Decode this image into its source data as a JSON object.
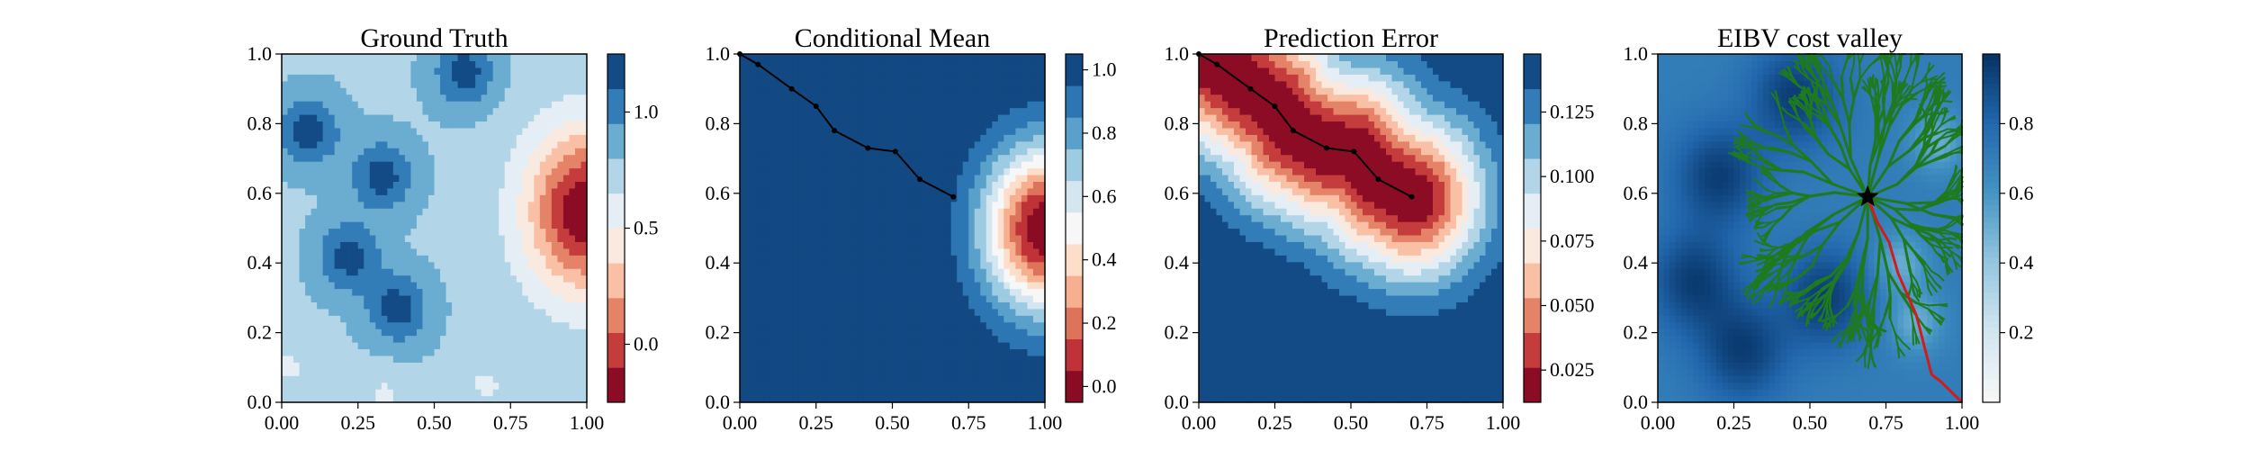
{
  "chart_data": [
    {
      "type": "heatmap",
      "title": "Ground Truth",
      "xlabel": "",
      "ylabel": "",
      "xlim": [
        0,
        1
      ],
      "ylim": [
        0,
        1
      ],
      "x_ticks": [
        "0.00",
        "0.25",
        "0.50",
        "0.75",
        "1.00"
      ],
      "y_ticks": [
        "0.0",
        "0.2",
        "0.4",
        "0.6",
        "0.8",
        "1.0"
      ],
      "colormap": "RdBu",
      "colorbar": {
        "range": [
          -0.25,
          1.25
        ],
        "levels": 10,
        "ticks": [
          0.0,
          0.5,
          1.0
        ],
        "tick_labels": [
          "0.0",
          "0.5",
          "1.0"
        ]
      },
      "field": {
        "hotspot": {
          "x": 1.0,
          "y": 0.55,
          "min_value": -0.25
        },
        "background_value": 1.0,
        "deep_blue_regions": [
          {
            "x": 0.22,
            "y": 0.42
          },
          {
            "x": 0.38,
            "y": 0.27
          },
          {
            "x": 0.09,
            "y": 0.78
          },
          {
            "x": 0.33,
            "y": 0.65
          },
          {
            "x": 0.6,
            "y": 0.95
          }
        ],
        "light_regions": [
          {
            "x": 0.02,
            "y": 0.1
          },
          {
            "x": 0.33,
            "y": 0.02
          },
          {
            "x": 0.67,
            "y": 0.05
          }
        ]
      }
    },
    {
      "type": "heatmap",
      "title": "Conditional Mean",
      "xlabel": "",
      "ylabel": "",
      "xlim": [
        0,
        1
      ],
      "ylim": [
        0,
        1
      ],
      "x_ticks": [
        "0.00",
        "0.25",
        "0.50",
        "0.75",
        "1.00"
      ],
      "y_ticks": [
        "0.0",
        "0.2",
        "0.4",
        "0.6",
        "0.8",
        "1.0"
      ],
      "colormap": "RdBu",
      "colorbar": {
        "range": [
          -0.05,
          1.05
        ],
        "levels": 11,
        "ticks": [
          0.0,
          0.2,
          0.4,
          0.6,
          0.8,
          1.0
        ],
        "tick_labels": [
          "0.0",
          "0.2",
          "0.4",
          "0.6",
          "0.8",
          "1.0"
        ]
      },
      "field": {
        "hotspot": {
          "x": 1.0,
          "y": 0.5,
          "min_value": -0.05
        },
        "background_value": 1.05
      },
      "path": [
        [
          0.0,
          1.0
        ],
        [
          0.06,
          0.97
        ],
        [
          0.17,
          0.9
        ],
        [
          0.25,
          0.85
        ],
        [
          0.31,
          0.78
        ],
        [
          0.42,
          0.73
        ],
        [
          0.51,
          0.72
        ],
        [
          0.59,
          0.64
        ],
        [
          0.7,
          0.59
        ]
      ]
    },
    {
      "type": "heatmap",
      "title": "Prediction Error",
      "xlabel": "",
      "ylabel": "",
      "xlim": [
        0,
        1
      ],
      "ylim": [
        0,
        1
      ],
      "x_ticks": [
        "0.00",
        "0.25",
        "0.50",
        "0.75",
        "1.00"
      ],
      "y_ticks": [
        "0.0",
        "0.2",
        "0.4",
        "0.6",
        "0.8",
        "1.0"
      ],
      "colormap": "RdBu",
      "colorbar": {
        "range": [
          0.0125,
          0.1475
        ],
        "levels": 10,
        "ticks": [
          0.025,
          0.05,
          0.075,
          0.1,
          0.125
        ],
        "tick_labels": [
          "0.025",
          "0.050",
          "0.075",
          "0.100",
          "0.125"
        ]
      },
      "field": {
        "min_value": 0.0125,
        "max_value": 0.1475,
        "background_value": 0.1475
      },
      "path": [
        [
          0.0,
          1.0
        ],
        [
          0.06,
          0.97
        ],
        [
          0.17,
          0.9
        ],
        [
          0.25,
          0.85
        ],
        [
          0.31,
          0.78
        ],
        [
          0.42,
          0.73
        ],
        [
          0.51,
          0.72
        ],
        [
          0.59,
          0.64
        ],
        [
          0.7,
          0.59
        ]
      ]
    },
    {
      "type": "heatmap",
      "title": "EIBV cost valley",
      "xlabel": "",
      "ylabel": "",
      "xlim": [
        0,
        1
      ],
      "ylim": [
        0,
        1
      ],
      "x_ticks": [
        "0.00",
        "0.25",
        "0.50",
        "0.75",
        "1.00"
      ],
      "y_ticks": [
        "0.0",
        "0.2",
        "0.4",
        "0.6",
        "0.8",
        "1.0"
      ],
      "colormap": "RdBu",
      "colorbar": {
        "range": [
          0.0,
          1.0
        ],
        "levels": 100,
        "ticks": [
          0.2,
          0.4,
          0.6,
          0.8
        ],
        "tick_labels": [
          "0.2",
          "0.4",
          "0.6",
          "0.8"
        ]
      },
      "field": {
        "background_value": 0.93,
        "blue_regions": [
          {
            "x": 0.28,
            "y": 0.15
          },
          {
            "x": 0.12,
            "y": 0.35
          },
          {
            "x": 0.55,
            "y": 0.3
          },
          {
            "x": 0.2,
            "y": 0.65
          },
          {
            "x": 0.45,
            "y": 0.88
          }
        ],
        "red_regions": [
          {
            "x": 0.8,
            "y": 0.4
          },
          {
            "x": 0.85,
            "y": 0.23
          },
          {
            "x": 0.92,
            "y": 0.75
          }
        ]
      },
      "tree_root": [
        0.69,
        0.59
      ],
      "tree_color": "#1f7a1f",
      "planned_path": [
        [
          0.69,
          0.59
        ],
        [
          0.72,
          0.52
        ],
        [
          0.76,
          0.46
        ],
        [
          0.79,
          0.37
        ],
        [
          0.85,
          0.25
        ],
        [
          0.9,
          0.08
        ],
        [
          0.93,
          0.06
        ],
        [
          1.0,
          0.0
        ]
      ],
      "planned_path_color": "#d01c1c",
      "start_marker": "star"
    }
  ]
}
